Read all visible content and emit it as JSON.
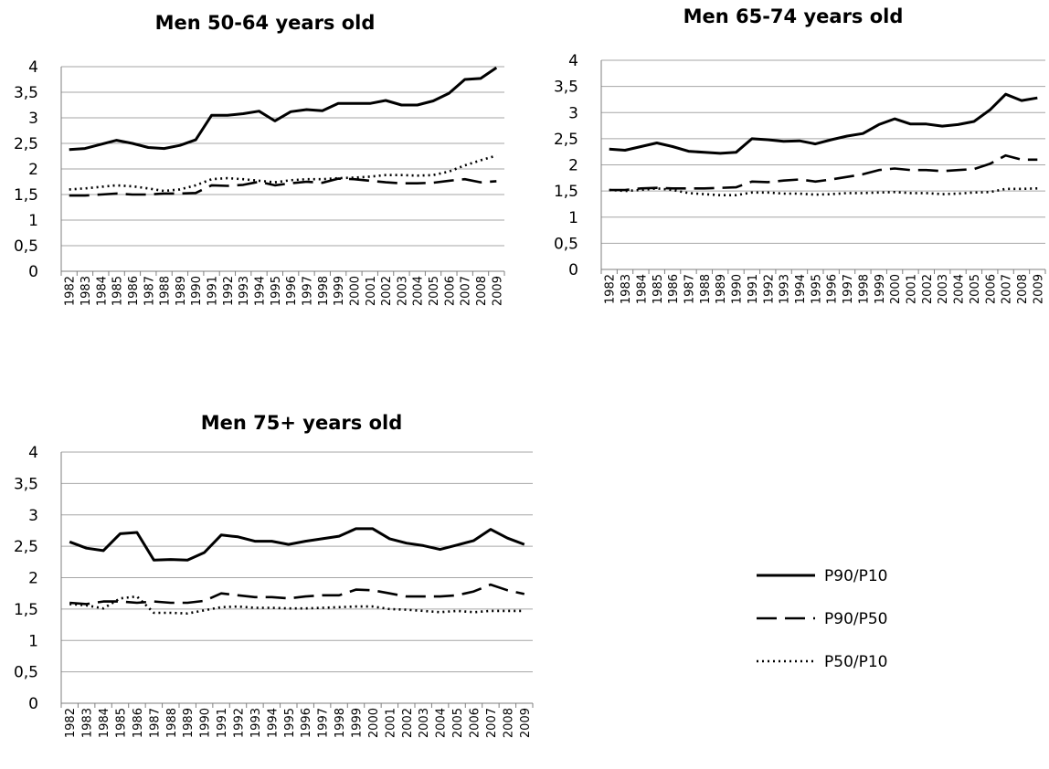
{
  "chart_data": [
    {
      "type": "line",
      "title": "Men 50-64 years old",
      "xlabel": "",
      "ylabel": "",
      "ylim": [
        0,
        4
      ],
      "yticks": [
        "0",
        "0,5",
        "1",
        "1,5",
        "2",
        "2,5",
        "3",
        "3,5",
        "4"
      ],
      "grid": true,
      "categories": [
        "1982",
        "1983",
        "1984",
        "1985",
        "1986",
        "1987",
        "1988",
        "1989",
        "1990",
        "1991",
        "1992",
        "1993",
        "1994",
        "1995",
        "1996",
        "1997",
        "1998",
        "1999",
        "2000",
        "2001",
        "2002",
        "2003",
        "2004",
        "2005",
        "2006",
        "2007",
        "2008",
        "2009"
      ],
      "series": [
        {
          "name": "P90/P10",
          "values": [
            2.38,
            2.4,
            2.48,
            2.56,
            2.5,
            2.42,
            2.4,
            2.46,
            2.57,
            3.05,
            3.05,
            3.08,
            3.13,
            2.94,
            3.12,
            3.16,
            3.14,
            3.28,
            3.28,
            3.28,
            3.34,
            3.25,
            3.25,
            3.33,
            3.48,
            3.75,
            3.77,
            3.98
          ]
        },
        {
          "name": "P90/P50",
          "values": [
            1.48,
            1.48,
            1.5,
            1.52,
            1.5,
            1.5,
            1.52,
            1.52,
            1.53,
            1.68,
            1.67,
            1.69,
            1.75,
            1.68,
            1.72,
            1.75,
            1.73,
            1.81,
            1.8,
            1.77,
            1.74,
            1.72,
            1.72,
            1.73,
            1.77,
            1.8,
            1.74,
            1.76
          ]
        },
        {
          "name": "P50/P10",
          "values": [
            1.6,
            1.62,
            1.65,
            1.68,
            1.66,
            1.62,
            1.57,
            1.6,
            1.68,
            1.8,
            1.82,
            1.8,
            1.77,
            1.74,
            1.78,
            1.8,
            1.8,
            1.82,
            1.83,
            1.85,
            1.88,
            1.88,
            1.87,
            1.88,
            1.95,
            2.07,
            2.17,
            2.26
          ]
        }
      ]
    },
    {
      "type": "line",
      "title": "Men 65-74 years old",
      "xlabel": "",
      "ylabel": "",
      "ylim": [
        0,
        4
      ],
      "yticks": [
        "0",
        "0,5",
        "1",
        "1,5",
        "2",
        "2,5",
        "3",
        "3,5",
        "4"
      ],
      "grid": true,
      "categories": [
        "1982",
        "1983",
        "1984",
        "1985",
        "1986",
        "1987",
        "1988",
        "1989",
        "1990",
        "1991",
        "1992",
        "1993",
        "1994",
        "1995",
        "1996",
        "1997",
        "1998",
        "1999",
        "2000",
        "2001",
        "2002",
        "2003",
        "2004",
        "2005",
        "2006",
        "2007",
        "2008",
        "2009"
      ],
      "series": [
        {
          "name": "P90/P10",
          "values": [
            2.3,
            2.28,
            2.35,
            2.42,
            2.35,
            2.26,
            2.24,
            2.22,
            2.24,
            2.5,
            2.48,
            2.45,
            2.46,
            2.4,
            2.48,
            2.55,
            2.6,
            2.77,
            2.88,
            2.78,
            2.78,
            2.74,
            2.77,
            2.83,
            3.05,
            3.35,
            3.23,
            3.28
          ]
        },
        {
          "name": "P90/P50",
          "values": [
            1.52,
            1.52,
            1.55,
            1.56,
            1.55,
            1.55,
            1.55,
            1.56,
            1.57,
            1.68,
            1.67,
            1.7,
            1.72,
            1.68,
            1.72,
            1.77,
            1.82,
            1.9,
            1.93,
            1.9,
            1.9,
            1.88,
            1.9,
            1.92,
            2.02,
            2.18,
            2.1,
            2.1
          ]
        },
        {
          "name": "P50/P10",
          "values": [
            1.52,
            1.5,
            1.52,
            1.55,
            1.52,
            1.46,
            1.44,
            1.42,
            1.42,
            1.47,
            1.47,
            1.45,
            1.45,
            1.43,
            1.44,
            1.46,
            1.46,
            1.47,
            1.48,
            1.46,
            1.46,
            1.44,
            1.45,
            1.47,
            1.48,
            1.54,
            1.54,
            1.55
          ]
        }
      ]
    },
    {
      "type": "line",
      "title": "Men 75+ years old",
      "xlabel": "",
      "ylabel": "",
      "ylim": [
        0,
        4
      ],
      "yticks": [
        "0",
        "0,5",
        "1",
        "1,5",
        "2",
        "2,5",
        "3",
        "3,5",
        "4"
      ],
      "grid": true,
      "categories": [
        "1982",
        "1983",
        "1984",
        "1985",
        "1986",
        "1987",
        "1988",
        "1989",
        "1990",
        "1991",
        "1992",
        "1993",
        "1994",
        "1995",
        "1996",
        "1997",
        "1998",
        "1999",
        "2000",
        "2001",
        "2002",
        "2003",
        "2004",
        "2005",
        "2006",
        "2007",
        "2008",
        "2009"
      ],
      "series": [
        {
          "name": "P90/P10",
          "values": [
            2.57,
            2.47,
            2.43,
            2.7,
            2.72,
            2.28,
            2.29,
            2.28,
            2.4,
            2.68,
            2.65,
            2.58,
            2.58,
            2.53,
            2.58,
            2.62,
            2.66,
            2.78,
            2.78,
            2.62,
            2.55,
            2.51,
            2.45,
            2.52,
            2.59,
            2.77,
            2.63,
            2.53
          ]
        },
        {
          "name": "P90/P50",
          "values": [
            1.6,
            1.58,
            1.62,
            1.62,
            1.6,
            1.62,
            1.6,
            1.6,
            1.63,
            1.75,
            1.72,
            1.69,
            1.69,
            1.67,
            1.7,
            1.72,
            1.72,
            1.81,
            1.8,
            1.75,
            1.7,
            1.7,
            1.7,
            1.72,
            1.78,
            1.89,
            1.8,
            1.74
          ]
        },
        {
          "name": "P50/P10",
          "values": [
            1.58,
            1.56,
            1.51,
            1.67,
            1.7,
            1.44,
            1.44,
            1.43,
            1.48,
            1.53,
            1.54,
            1.52,
            1.52,
            1.51,
            1.51,
            1.52,
            1.53,
            1.54,
            1.54,
            1.5,
            1.49,
            1.47,
            1.45,
            1.47,
            1.45,
            1.47,
            1.47,
            1.47
          ]
        }
      ]
    }
  ],
  "legend": {
    "placement": "right",
    "items": [
      {
        "label": "P90/P10",
        "style": "solid"
      },
      {
        "label": "P90/P50",
        "style": "dashed"
      },
      {
        "label": "P50/P10",
        "style": "dotted"
      }
    ]
  },
  "colors": {
    "line": "#000000",
    "grid": "#a6a6a6",
    "axis": "#7f7f7f"
  }
}
